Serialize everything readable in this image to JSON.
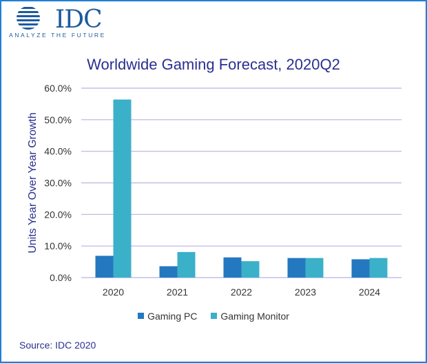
{
  "logo": {
    "name": "IDC",
    "tagline": "ANALYZE THE FUTURE"
  },
  "colors": {
    "border": "#1f7fd6",
    "title": "#2a2f8f",
    "gaming_pc": "#2478c0",
    "gaming_monitor": "#3bb0c9",
    "grid": "#b8b2e0"
  },
  "source": "Source: IDC 2020",
  "chart_data": {
    "type": "bar",
    "title": "Worldwide Gaming Forecast, 2020Q2",
    "xlabel": "",
    "ylabel": "Units Year Over Year Growth",
    "categories": [
      "2020",
      "2021",
      "2022",
      "2023",
      "2024"
    ],
    "series": [
      {
        "name": "Gaming PC",
        "values": [
          6.9,
          3.6,
          6.4,
          6.2,
          5.8
        ]
      },
      {
        "name": "Gaming Monitor",
        "values": [
          56.4,
          8.1,
          5.2,
          6.2,
          6.2
        ]
      }
    ],
    "ylim": [
      0,
      60
    ],
    "yticks": [
      "0.0%",
      "10.0%",
      "20.0%",
      "30.0%",
      "40.0%",
      "50.0%",
      "60.0%"
    ],
    "grid": true,
    "legend": "bottom"
  }
}
